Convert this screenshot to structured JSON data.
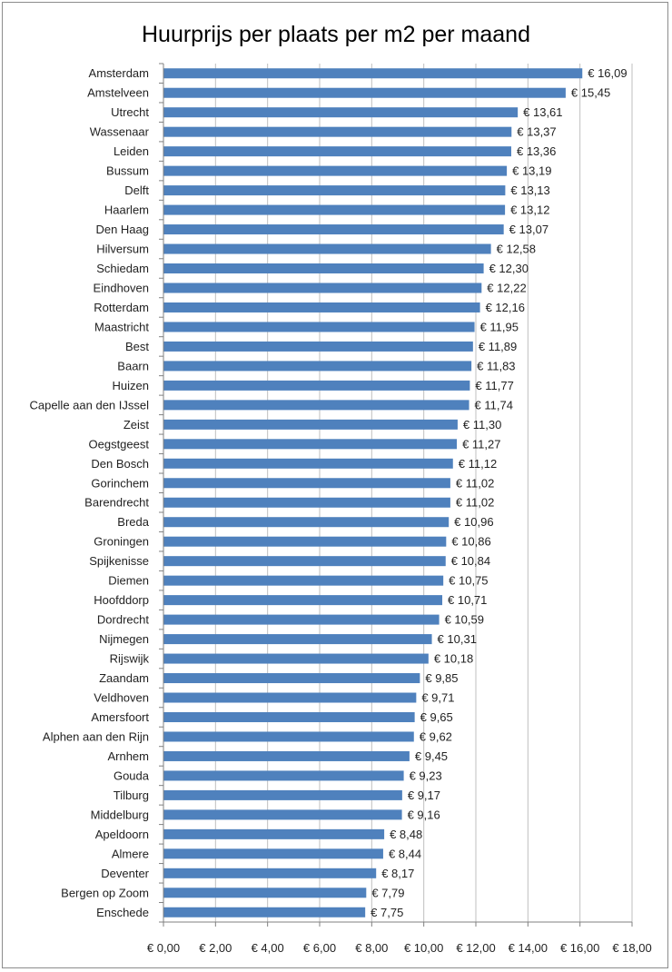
{
  "chart_data": {
    "type": "bar",
    "orientation": "horizontal",
    "title": "Huurprijs per plaats per m2 per maand",
    "xlabel": "",
    "ylabel": "",
    "xlim": [
      0,
      18
    ],
    "x_ticks": [
      "€ 0,00",
      "€ 2,00",
      "€ 4,00",
      "€ 6,00",
      "€ 8,00",
      "€ 10,00",
      "€ 12,00",
      "€ 14,00",
      "€ 16,00",
      "€ 18,00"
    ],
    "grid": true,
    "bar_color": "#4f81bd",
    "categories": [
      "Amsterdam",
      "Amstelveen",
      "Utrecht",
      "Wassenaar",
      "Leiden",
      "Bussum",
      "Delft",
      "Haarlem",
      "Den Haag",
      "Hilversum",
      "Schiedam",
      "Eindhoven",
      "Rotterdam",
      "Maastricht",
      "Best",
      "Baarn",
      "Huizen",
      "Capelle aan den IJssel",
      "Zeist",
      "Oegstgeest",
      "Den Bosch",
      "Gorinchem",
      "Barendrecht",
      "Breda",
      "Groningen",
      "Spijkenisse",
      "Diemen",
      "Hoofddorp",
      "Dordrecht",
      "Nijmegen",
      "Rijswijk",
      "Zaandam",
      "Veldhoven",
      "Amersfoort",
      "Alphen aan den Rijn",
      "Arnhem",
      "Gouda",
      "Tilburg",
      "Middelburg",
      "Apeldoorn",
      "Almere",
      "Deventer",
      "Bergen op Zoom",
      "Enschede"
    ],
    "values": [
      16.09,
      15.45,
      13.61,
      13.37,
      13.36,
      13.19,
      13.13,
      13.12,
      13.07,
      12.58,
      12.3,
      12.22,
      12.16,
      11.95,
      11.89,
      11.83,
      11.77,
      11.74,
      11.3,
      11.27,
      11.12,
      11.02,
      11.02,
      10.96,
      10.86,
      10.84,
      10.75,
      10.71,
      10.59,
      10.31,
      10.18,
      9.85,
      9.71,
      9.65,
      9.62,
      9.45,
      9.23,
      9.17,
      9.16,
      8.48,
      8.44,
      8.17,
      7.79,
      7.75
    ],
    "value_labels": [
      "€ 16,09",
      "€ 15,45",
      "€ 13,61",
      "€ 13,37",
      "€ 13,36",
      "€ 13,19",
      "€ 13,13",
      "€ 13,12",
      "€ 13,07",
      "€ 12,58",
      "€ 12,30",
      "€ 12,22",
      "€ 12,16",
      "€ 11,95",
      "€ 11,89",
      "€ 11,83",
      "€ 11,77",
      "€ 11,74",
      "€ 11,30",
      "€ 11,27",
      "€ 11,12",
      "€ 11,02",
      "€ 11,02",
      "€ 10,96",
      "€ 10,86",
      "€ 10,84",
      "€ 10,75",
      "€ 10,71",
      "€ 10,59",
      "€ 10,31",
      "€ 10,18",
      "€ 9,85",
      "€ 9,71",
      "€ 9,65",
      "€ 9,62",
      "€ 9,45",
      "€ 9,23",
      "€ 9,17",
      "€ 9,16",
      "€ 8,48",
      "€ 8,44",
      "€ 8,17",
      "€ 7,79",
      "€ 7,75"
    ]
  }
}
